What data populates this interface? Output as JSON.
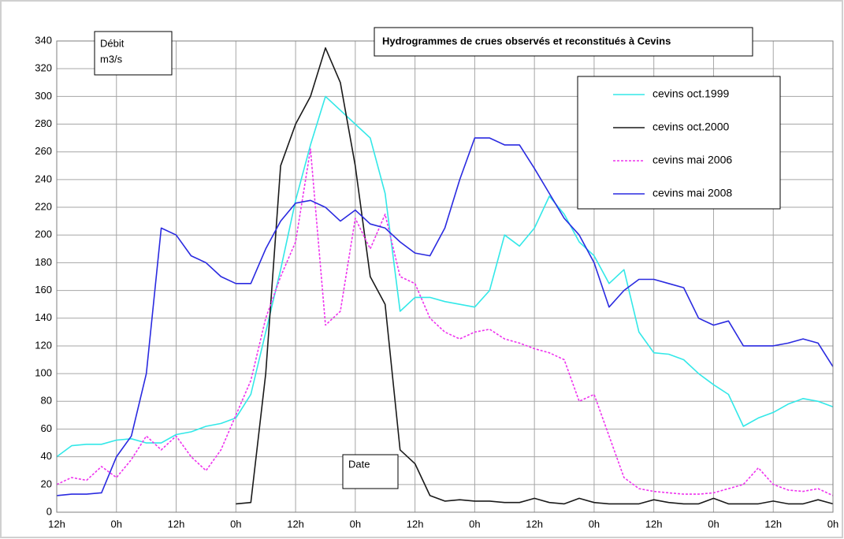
{
  "chart_data": {
    "type": "line",
    "title": "Hydrogrammes de crues observés et reconstitués à Cevins",
    "y_label": [
      "Débit",
      "m3/s"
    ],
    "x_label": "Date",
    "x": [
      0,
      3,
      6,
      9,
      12,
      15,
      18,
      21,
      24,
      27,
      30,
      33,
      36,
      39,
      42,
      45,
      48,
      51,
      54,
      57,
      60,
      63,
      66,
      69,
      72,
      75,
      78,
      81,
      84,
      87,
      90,
      93,
      96,
      99,
      102,
      105,
      108,
      111,
      114,
      117,
      120,
      123,
      126,
      129,
      132,
      135,
      138,
      141,
      144,
      147,
      150,
      153,
      156
    ],
    "xlim": [
      0,
      156
    ],
    "xticks": [
      {
        "value": 0,
        "label": "12h"
      },
      {
        "value": 12,
        "label": "0h"
      },
      {
        "value": 24,
        "label": "12h"
      },
      {
        "value": 36,
        "label": "0h"
      },
      {
        "value": 48,
        "label": "12h"
      },
      {
        "value": 60,
        "label": "0h"
      },
      {
        "value": 72,
        "label": "12h"
      },
      {
        "value": 84,
        "label": "0h"
      },
      {
        "value": 96,
        "label": "12h"
      },
      {
        "value": 108,
        "label": "0h"
      },
      {
        "value": 120,
        "label": "12h"
      },
      {
        "value": 132,
        "label": "0h"
      },
      {
        "value": 144,
        "label": "12h"
      },
      {
        "value": 156,
        "label": "0h"
      }
    ],
    "ylim": [
      0,
      340
    ],
    "yticks": [
      0,
      20,
      40,
      60,
      80,
      100,
      120,
      140,
      160,
      180,
      200,
      220,
      240,
      260,
      280,
      300,
      320,
      340
    ],
    "grid": true,
    "legend": "upper right",
    "series": [
      {
        "name": "cevins  oct.1999",
        "color": "#33e8e8",
        "dash": false,
        "values": [
          40,
          48,
          49,
          49,
          52,
          53,
          50,
          50,
          56,
          58,
          62,
          64,
          68,
          85,
          130,
          175,
          225,
          265,
          300,
          290,
          280,
          270,
          230,
          145,
          155,
          155,
          152,
          150,
          148,
          160,
          200,
          192,
          205,
          228,
          215,
          195,
          185,
          165,
          175,
          130,
          115,
          114,
          110,
          100,
          92,
          85,
          62,
          68,
          72,
          78,
          82,
          80,
          76
        ]
      },
      {
        "name": "cevins oct.2000",
        "color": "#1a1a1a",
        "dash": false,
        "values": [
          null,
          null,
          null,
          null,
          null,
          null,
          null,
          null,
          null,
          null,
          null,
          null,
          6,
          7,
          100,
          250,
          280,
          300,
          335,
          310,
          250,
          170,
          150,
          45,
          35,
          12,
          8,
          9,
          8,
          8,
          7,
          7,
          10,
          7,
          6,
          10,
          7,
          6,
          6,
          6,
          9,
          7,
          6,
          6,
          10,
          6,
          6,
          6,
          8,
          6,
          6,
          9,
          6
        ]
      },
      {
        "name": "cevins mai 2006",
        "color": "#ee33ee",
        "dash": true,
        "values": [
          20,
          25,
          23,
          33,
          25,
          38,
          55,
          45,
          55,
          40,
          30,
          45,
          70,
          95,
          140,
          170,
          195,
          262,
          135,
          145,
          212,
          190,
          215,
          170,
          165,
          140,
          130,
          125,
          130,
          132,
          125,
          122,
          118,
          115,
          110,
          80,
          85,
          55,
          25,
          17,
          15,
          14,
          13,
          13,
          14,
          17,
          20,
          32,
          20,
          16,
          15,
          17,
          12
        ]
      },
      {
        "name": "cevins mai 2008",
        "color": "#2a2ae0",
        "dash": false,
        "values": [
          12,
          13,
          13,
          14,
          40,
          55,
          100,
          205,
          200,
          185,
          180,
          170,
          165,
          165,
          190,
          210,
          223,
          225,
          220,
          210,
          218,
          208,
          205,
          195,
          187,
          185,
          205,
          240,
          270,
          270,
          265,
          265,
          248,
          230,
          212,
          200,
          180,
          148,
          160,
          168,
          168,
          165,
          162,
          140,
          135,
          138,
          120,
          120,
          120,
          122,
          125,
          122,
          105
        ]
      }
    ]
  }
}
